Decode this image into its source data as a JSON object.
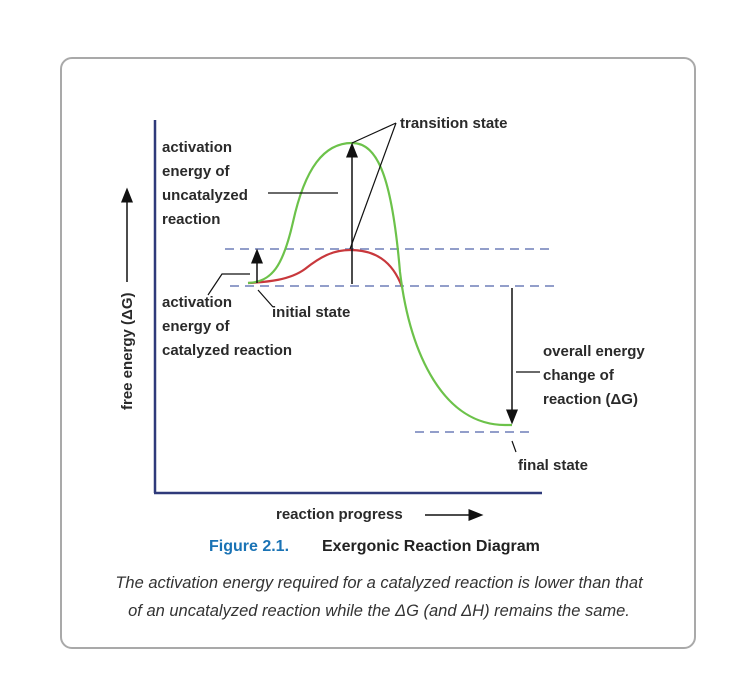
{
  "labels": {
    "transition_state": "transition state",
    "uncatalyzed_1": "activation",
    "uncatalyzed_2": "energy of",
    "uncatalyzed_3": "uncatalyzed",
    "uncatalyzed_4": "reaction",
    "catalyzed_1": "activation",
    "catalyzed_2": "energy of",
    "catalyzed_3": "catalyzed reaction",
    "initial_state": "initial state",
    "overall_1": "overall energy",
    "overall_2": "change of",
    "overall_3": "reaction (ΔG)",
    "final_state": "final state",
    "x_axis": "reaction progress",
    "y_axis": "free energy (ΔG)"
  },
  "caption": {
    "number": "Figure 2.1.",
    "title": "Exergonic Reaction Diagram",
    "line1": "The activation energy required for a catalyzed reaction is lower than that",
    "line2": "of an uncatalyzed reaction while the ΔG (and ΔH) remains the same."
  },
  "colors": {
    "uncatalyzed_curve": "#6cc24a",
    "catalyzed_curve": "#c8383c",
    "guide_lines": "#6f7fb8",
    "axis": "#2f3a7a",
    "caption_number": "#1a73b5"
  }
}
